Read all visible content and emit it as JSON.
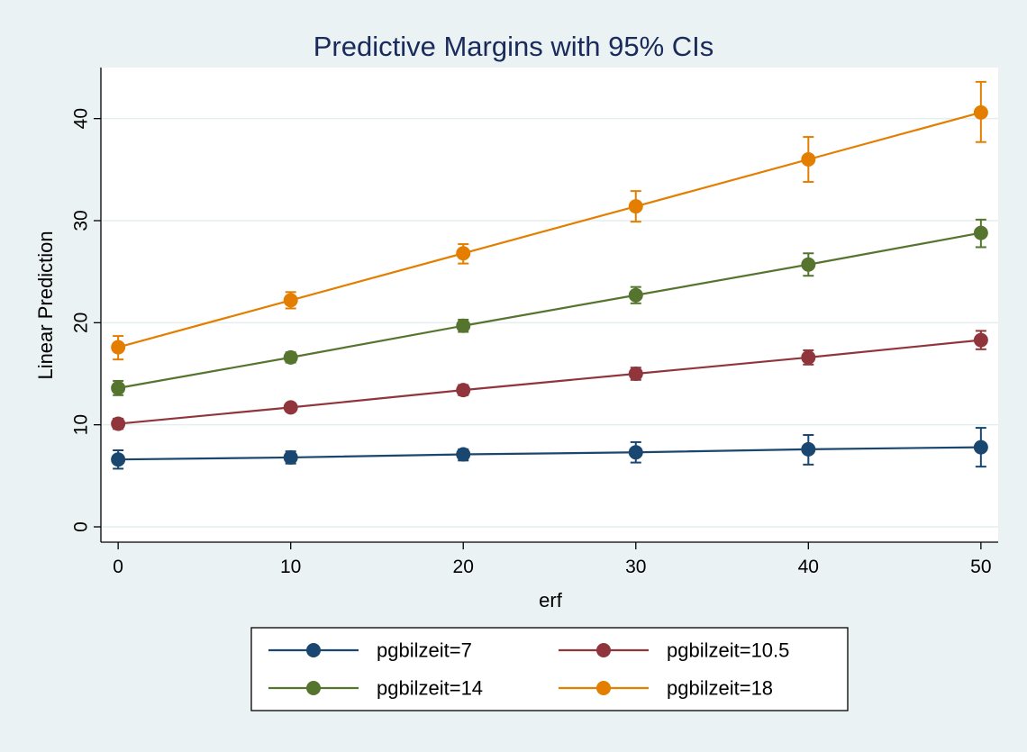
{
  "chart_data": {
    "type": "line",
    "title": "Predictive Margins with 95% CIs",
    "xlabel": "erf",
    "ylabel": "Linear Prediction",
    "x": [
      0,
      10,
      20,
      30,
      40,
      50
    ],
    "xlim": [
      -1,
      51
    ],
    "ylim": [
      -1.5,
      45
    ],
    "xticks": [
      "0",
      "10",
      "20",
      "30",
      "40",
      "50"
    ],
    "yticks": [
      "0",
      "10",
      "20",
      "30",
      "40"
    ],
    "grid": true,
    "legend_position": "bottom",
    "series": [
      {
        "name": "pgbilzeit=7",
        "color": "#1a476f",
        "values": [
          6.6,
          6.8,
          7.1,
          7.3,
          7.6,
          7.8
        ],
        "ci_low": [
          5.7,
          6.2,
          6.5,
          6.3,
          6.1,
          5.9
        ],
        "ci_high": [
          7.5,
          7.4,
          7.6,
          8.3,
          9.0,
          9.7
        ]
      },
      {
        "name": "pgbilzeit=10.5",
        "color": "#90353b",
        "values": [
          10.1,
          11.7,
          13.4,
          15.0,
          16.6,
          18.3
        ],
        "ci_low": [
          9.6,
          11.3,
          12.9,
          14.4,
          15.9,
          17.4
        ],
        "ci_high": [
          10.6,
          12.1,
          13.9,
          15.6,
          17.3,
          19.2
        ]
      },
      {
        "name": "pgbilzeit=14",
        "color": "#55752f",
        "values": [
          13.6,
          16.6,
          19.7,
          22.7,
          25.7,
          28.8
        ],
        "ci_low": [
          12.9,
          16.1,
          19.1,
          21.9,
          24.6,
          27.4
        ],
        "ci_high": [
          14.3,
          17.1,
          20.3,
          23.5,
          26.8,
          30.1
        ]
      },
      {
        "name": "pgbilzeit=18",
        "color": "#e37e00",
        "values": [
          17.6,
          22.2,
          26.8,
          31.4,
          36.0,
          40.6
        ],
        "ci_low": [
          16.4,
          21.4,
          25.8,
          29.9,
          33.8,
          37.7
        ],
        "ci_high": [
          18.7,
          23.0,
          27.7,
          32.9,
          38.2,
          43.6
        ]
      }
    ]
  }
}
